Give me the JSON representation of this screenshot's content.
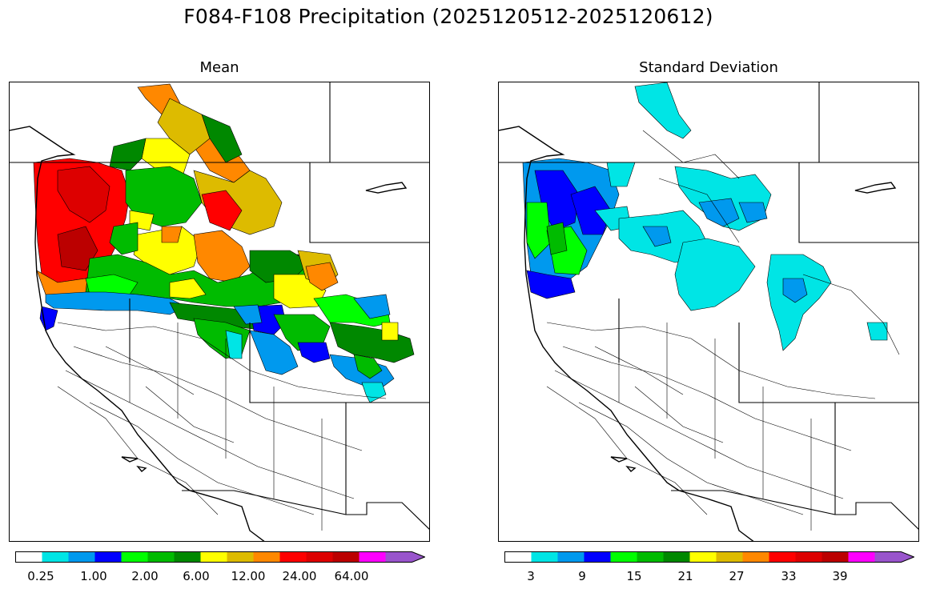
{
  "title": "F084-F108 Precipitation (2025120512-2025120612)",
  "panels": [
    {
      "title": "Mean",
      "colorbar_ticks": [
        "0.25",
        "1.00",
        "2.00",
        "6.00",
        "12.00",
        "24.00",
        "64.00"
      ]
    },
    {
      "title": "Standard Deviation",
      "colorbar_ticks": [
        "3",
        "9",
        "15",
        "21",
        "27",
        "33",
        "39"
      ]
    }
  ],
  "colorbar_colors": [
    "#ffffff",
    "#00e5e5",
    "#0099ee",
    "#0000ff",
    "#00ff00",
    "#00bb00",
    "#008800",
    "#ffff00",
    "#ddbb00",
    "#ff8800",
    "#ff0000",
    "#dd0000",
    "#bb0000",
    "#ff00ff",
    "#9955cc"
  ]
}
